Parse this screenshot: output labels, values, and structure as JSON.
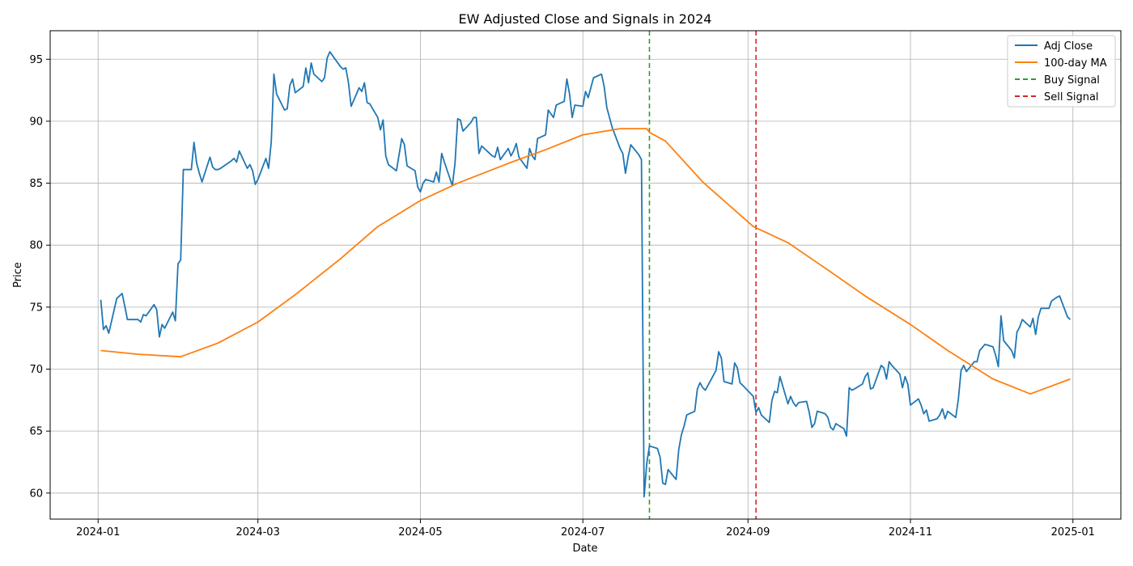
{
  "chart_data": {
    "type": "line",
    "title": "EW Adjusted Close and Signals in 2024",
    "xlabel": "Date",
    "ylabel": "Price",
    "xlim": [
      "2023-12-14",
      "2025-01-19"
    ],
    "ylim": [
      57.9,
      97.3
    ],
    "grid": true,
    "legend_position": "top-right",
    "x_ticks": [
      "2024-01",
      "2024-03",
      "2024-05",
      "2024-07",
      "2024-09",
      "2024-11",
      "2025-01"
    ],
    "y_ticks": [
      60,
      65,
      70,
      75,
      80,
      85,
      90,
      95
    ],
    "series": [
      {
        "name": "Adj Close",
        "color": "#1f77b4",
        "x": [
          "2024-01-02",
          "2024-01-03",
          "2024-01-04",
          "2024-01-05",
          "2024-01-08",
          "2024-01-09",
          "2024-01-10",
          "2024-01-11",
          "2024-01-12",
          "2024-01-16",
          "2024-01-17",
          "2024-01-18",
          "2024-01-19",
          "2024-01-22",
          "2024-01-23",
          "2024-01-24",
          "2024-01-25",
          "2024-01-26",
          "2024-01-29",
          "2024-01-30",
          "2024-01-31",
          "2024-02-01",
          "2024-02-02",
          "2024-02-05",
          "2024-02-06",
          "2024-02-07",
          "2024-02-08",
          "2024-02-09",
          "2024-02-12",
          "2024-02-13",
          "2024-02-14",
          "2024-02-15",
          "2024-02-16",
          "2024-02-20",
          "2024-02-21",
          "2024-02-22",
          "2024-02-23",
          "2024-02-26",
          "2024-02-27",
          "2024-02-28",
          "2024-02-29",
          "2024-03-01",
          "2024-03-04",
          "2024-03-05",
          "2024-03-06",
          "2024-03-07",
          "2024-03-08",
          "2024-03-11",
          "2024-03-12",
          "2024-03-13",
          "2024-03-14",
          "2024-03-15",
          "2024-03-18",
          "2024-03-19",
          "2024-03-20",
          "2024-03-21",
          "2024-03-22",
          "2024-03-25",
          "2024-03-26",
          "2024-03-27",
          "2024-03-28",
          "2024-04-01",
          "2024-04-02",
          "2024-04-03",
          "2024-04-04",
          "2024-04-05",
          "2024-04-08",
          "2024-04-09",
          "2024-04-10",
          "2024-04-11",
          "2024-04-12",
          "2024-04-15",
          "2024-04-16",
          "2024-04-17",
          "2024-04-18",
          "2024-04-19",
          "2024-04-22",
          "2024-04-23",
          "2024-04-24",
          "2024-04-25",
          "2024-04-26",
          "2024-04-29",
          "2024-04-30",
          "2024-05-01",
          "2024-05-02",
          "2024-05-03",
          "2024-05-06",
          "2024-05-07",
          "2024-05-08",
          "2024-05-09",
          "2024-05-10",
          "2024-05-13",
          "2024-05-14",
          "2024-05-15",
          "2024-05-16",
          "2024-05-17",
          "2024-05-20",
          "2024-05-21",
          "2024-05-22",
          "2024-05-23",
          "2024-05-24",
          "2024-05-28",
          "2024-05-29",
          "2024-05-30",
          "2024-05-31",
          "2024-06-03",
          "2024-06-04",
          "2024-06-05",
          "2024-06-06",
          "2024-06-07",
          "2024-06-10",
          "2024-06-11",
          "2024-06-12",
          "2024-06-13",
          "2024-06-14",
          "2024-06-17",
          "2024-06-18",
          "2024-06-20",
          "2024-06-21",
          "2024-06-24",
          "2024-06-25",
          "2024-06-26",
          "2024-06-27",
          "2024-06-28",
          "2024-07-01",
          "2024-07-02",
          "2024-07-03",
          "2024-07-05",
          "2024-07-08",
          "2024-07-09",
          "2024-07-10",
          "2024-07-11",
          "2024-07-12",
          "2024-07-15",
          "2024-07-16",
          "2024-07-17",
          "2024-07-18",
          "2024-07-19",
          "2024-07-22",
          "2024-07-23",
          "2024-07-24",
          "2024-07-25",
          "2024-07-26",
          "2024-07-29",
          "2024-07-30",
          "2024-07-31",
          "2024-08-01",
          "2024-08-02",
          "2024-08-05",
          "2024-08-06",
          "2024-08-07",
          "2024-08-08",
          "2024-08-09",
          "2024-08-12",
          "2024-08-13",
          "2024-08-14",
          "2024-08-15",
          "2024-08-16",
          "2024-08-19",
          "2024-08-20",
          "2024-08-21",
          "2024-08-22",
          "2024-08-23",
          "2024-08-26",
          "2024-08-27",
          "2024-08-28",
          "2024-08-29",
          "2024-08-30",
          "2024-09-03",
          "2024-09-04",
          "2024-09-05",
          "2024-09-06",
          "2024-09-09",
          "2024-09-10",
          "2024-09-11",
          "2024-09-12",
          "2024-09-13",
          "2024-09-16",
          "2024-09-17",
          "2024-09-18",
          "2024-09-19",
          "2024-09-20",
          "2024-09-23",
          "2024-09-24",
          "2024-09-25",
          "2024-09-26",
          "2024-09-27",
          "2024-09-30",
          "2024-10-01",
          "2024-10-02",
          "2024-10-03",
          "2024-10-04",
          "2024-10-07",
          "2024-10-08",
          "2024-10-09",
          "2024-10-10",
          "2024-10-11",
          "2024-10-14",
          "2024-10-15",
          "2024-10-16",
          "2024-10-17",
          "2024-10-18",
          "2024-10-21",
          "2024-10-22",
          "2024-10-23",
          "2024-10-24",
          "2024-10-25",
          "2024-10-28",
          "2024-10-29",
          "2024-10-30",
          "2024-10-31",
          "2024-11-01",
          "2024-11-04",
          "2024-11-05",
          "2024-11-06",
          "2024-11-07",
          "2024-11-08",
          "2024-11-11",
          "2024-11-12",
          "2024-11-13",
          "2024-11-14",
          "2024-11-15",
          "2024-11-18",
          "2024-11-19",
          "2024-11-20",
          "2024-11-21",
          "2024-11-22",
          "2024-11-25",
          "2024-11-26",
          "2024-11-27",
          "2024-11-29",
          "2024-12-02",
          "2024-12-03",
          "2024-12-04",
          "2024-12-05",
          "2024-12-06",
          "2024-12-09",
          "2024-12-10",
          "2024-12-11",
          "2024-12-12",
          "2024-12-13",
          "2024-12-16",
          "2024-12-17",
          "2024-12-18",
          "2024-12-19",
          "2024-12-20",
          "2024-12-23",
          "2024-12-24",
          "2024-12-26",
          "2024-12-27",
          "2024-12-30",
          "2024-12-31"
        ],
        "y": [
          75.6,
          73.2,
          73.5,
          72.9,
          75.7,
          75.9,
          76.1,
          75.1,
          74.0,
          74.0,
          73.8,
          74.4,
          74.3,
          75.2,
          74.8,
          72.6,
          73.6,
          73.3,
          74.6,
          73.9,
          78.5,
          78.8,
          86.1,
          86.1,
          88.3,
          86.6,
          85.8,
          85.1,
          87.1,
          86.3,
          86.1,
          86.1,
          86.2,
          86.8,
          87.0,
          86.7,
          87.6,
          86.2,
          86.5,
          86.0,
          84.9,
          85.3,
          87.0,
          86.2,
          88.3,
          93.8,
          92.2,
          90.9,
          91.0,
          92.9,
          93.4,
          92.3,
          92.8,
          94.3,
          93.1,
          94.7,
          93.8,
          93.2,
          93.5,
          95.1,
          95.6,
          94.4,
          94.2,
          94.3,
          93.1,
          91.2,
          92.7,
          92.4,
          93.1,
          91.5,
          91.4,
          90.3,
          89.3,
          90.1,
          87.2,
          86.5,
          86.0,
          87.3,
          88.6,
          88.1,
          86.4,
          86.0,
          84.7,
          84.3,
          85.0,
          85.3,
          85.1,
          85.9,
          85.1,
          87.4,
          86.7,
          84.8,
          86.6,
          90.2,
          90.1,
          89.2,
          89.9,
          90.3,
          90.3,
          87.4,
          88.0,
          87.2,
          87.1,
          87.9,
          86.9,
          87.8,
          87.2,
          87.6,
          88.2,
          87.1,
          86.2,
          87.8,
          87.2,
          86.9,
          88.6,
          88.9,
          90.9,
          90.3,
          91.3,
          91.6,
          93.4,
          92.2,
          90.3,
          91.3,
          91.2,
          92.4,
          91.9,
          93.5,
          93.8,
          92.8,
          91.1,
          90.3,
          89.5,
          87.8,
          87.4,
          85.8,
          87.1,
          88.1,
          87.3,
          86.9,
          59.7,
          62.4,
          63.8,
          63.6,
          62.9,
          60.8,
          60.7,
          61.9,
          61.1,
          63.5,
          64.7,
          65.4,
          66.3,
          66.6,
          68.4,
          68.9,
          68.5,
          68.3,
          69.5,
          69.9,
          71.4,
          70.9,
          69.0,
          68.8,
          70.5,
          70.1,
          68.9,
          68.7,
          67.8,
          66.5,
          66.9,
          66.3,
          65.7,
          67.5,
          68.2,
          68.1,
          69.4,
          67.2,
          67.8,
          67.3,
          67.0,
          67.3,
          67.4,
          66.5,
          65.3,
          65.6,
          66.6,
          66.4,
          66.1,
          65.3,
          65.1,
          65.6,
          65.2,
          64.6,
          68.5,
          68.3,
          68.4,
          68.8,
          69.4,
          69.7,
          68.4,
          68.5,
          70.3,
          70.1,
          69.2,
          70.6,
          70.3,
          69.6,
          68.5,
          69.4,
          68.8,
          67.1,
          67.6,
          67.1,
          66.4,
          66.7,
          65.8,
          66.0,
          66.3,
          66.8,
          66.0,
          66.6,
          66.1,
          67.6,
          69.9,
          70.3,
          69.8,
          70.6,
          70.6,
          71.5,
          72.0,
          71.8,
          71.1,
          70.2,
          74.3,
          72.3,
          71.5,
          70.9,
          73.0,
          73.4,
          74.0,
          73.4,
          74.1,
          72.8,
          74.2,
          74.9,
          74.9,
          75.5,
          75.8,
          75.9,
          74.2,
          74.0
        ]
      },
      {
        "name": "100-day MA",
        "color": "#ff7f0e",
        "x": [
          "2024-01-02",
          "2024-01-16",
          "2024-02-01",
          "2024-02-15",
          "2024-03-01",
          "2024-03-15",
          "2024-04-01",
          "2024-04-15",
          "2024-05-01",
          "2024-05-15",
          "2024-06-03",
          "2024-06-17",
          "2024-07-01",
          "2024-07-15",
          "2024-07-25",
          "2024-07-26",
          "2024-08-01",
          "2024-08-15",
          "2024-09-03",
          "2024-09-16",
          "2024-10-01",
          "2024-10-15",
          "2024-11-01",
          "2024-11-15",
          "2024-12-02",
          "2024-12-16",
          "2024-12-31"
        ],
        "y": [
          71.5,
          71.2,
          71.0,
          72.1,
          73.8,
          76.0,
          78.9,
          81.5,
          83.6,
          85.0,
          86.6,
          87.7,
          88.9,
          89.4,
          89.4,
          89.1,
          88.4,
          85.1,
          81.5,
          80.2,
          78.0,
          75.9,
          73.6,
          71.5,
          69.2,
          68.0,
          69.2
        ]
      }
    ],
    "signals": [
      {
        "name": "Buy Signal",
        "date": "2024-07-26",
        "color": "#2ca02c"
      },
      {
        "name": "Sell Signal",
        "date": "2024-09-04",
        "color": "#d62728"
      }
    ]
  }
}
